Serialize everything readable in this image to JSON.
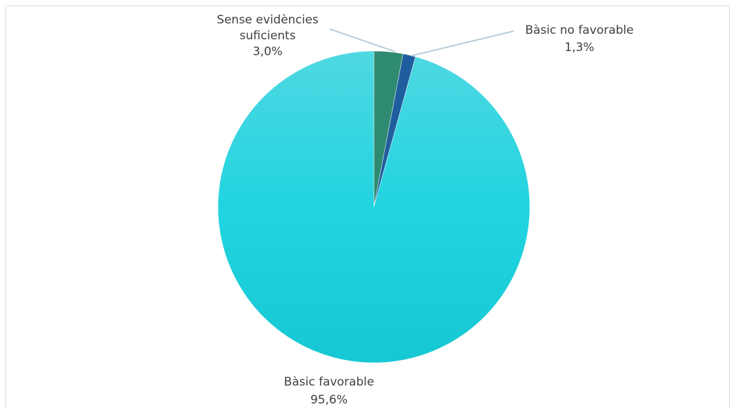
{
  "chart_data": {
    "type": "pie",
    "title": "",
    "start_angle_deg": 0,
    "direction": "clockwise",
    "slices": [
      {
        "label_lines": [
          "Sense evidències",
          "suficients"
        ],
        "value": 3.0,
        "value_label": "3,0%",
        "color": "#2E8B72"
      },
      {
        "label_lines": [
          "Bàsic no favorable"
        ],
        "value": 1.3,
        "value_label": "1,3%",
        "color": "#1F5E9E"
      },
      {
        "label_lines": [
          "Bàsic favorable"
        ],
        "value": 95.6,
        "value_label": "95,6%",
        "color": "#1ED2DE"
      }
    ],
    "leader_line_color": "#B7CDD9",
    "background": "#FFFFFF"
  }
}
